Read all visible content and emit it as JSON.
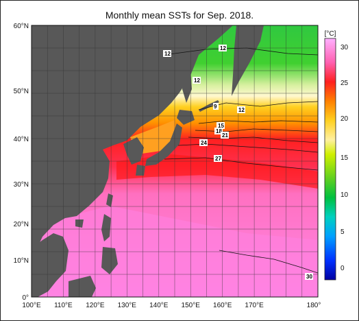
{
  "title": "Monthly mean SSTs for Sep. 2018.",
  "lat_labels": [
    "60°N",
    "50°N",
    "40°N",
    "30°N",
    "20°N",
    "10°N",
    "0°"
  ],
  "lon_labels": [
    "100°E",
    "110°E",
    "120°E",
    "130°E",
    "140°E",
    "150°E",
    "160°E",
    "170°E",
    "180°"
  ],
  "colorbar": {
    "unit": "[°C]",
    "ticks": [
      "30",
      "25",
      "20",
      "15",
      "10",
      "5",
      "0"
    ],
    "colors": [
      "#0000a0",
      "#0030ff",
      "#00a0ff",
      "#00d0c0",
      "#00c040",
      "#40d020",
      "#a0e000",
      "#e8f040",
      "#fff0a0",
      "#ffe040",
      "#ffb000",
      "#ff7000",
      "#ff2020",
      "#ff60a0",
      "#ff80e0",
      "#ffb0ff"
    ]
  },
  "contour_labels": [
    "12",
    "12",
    "12",
    "9",
    "12",
    "15",
    "18",
    "21",
    "24",
    "27",
    "30"
  ],
  "colors": {
    "land": "#585858",
    "grid": "#333333"
  }
}
